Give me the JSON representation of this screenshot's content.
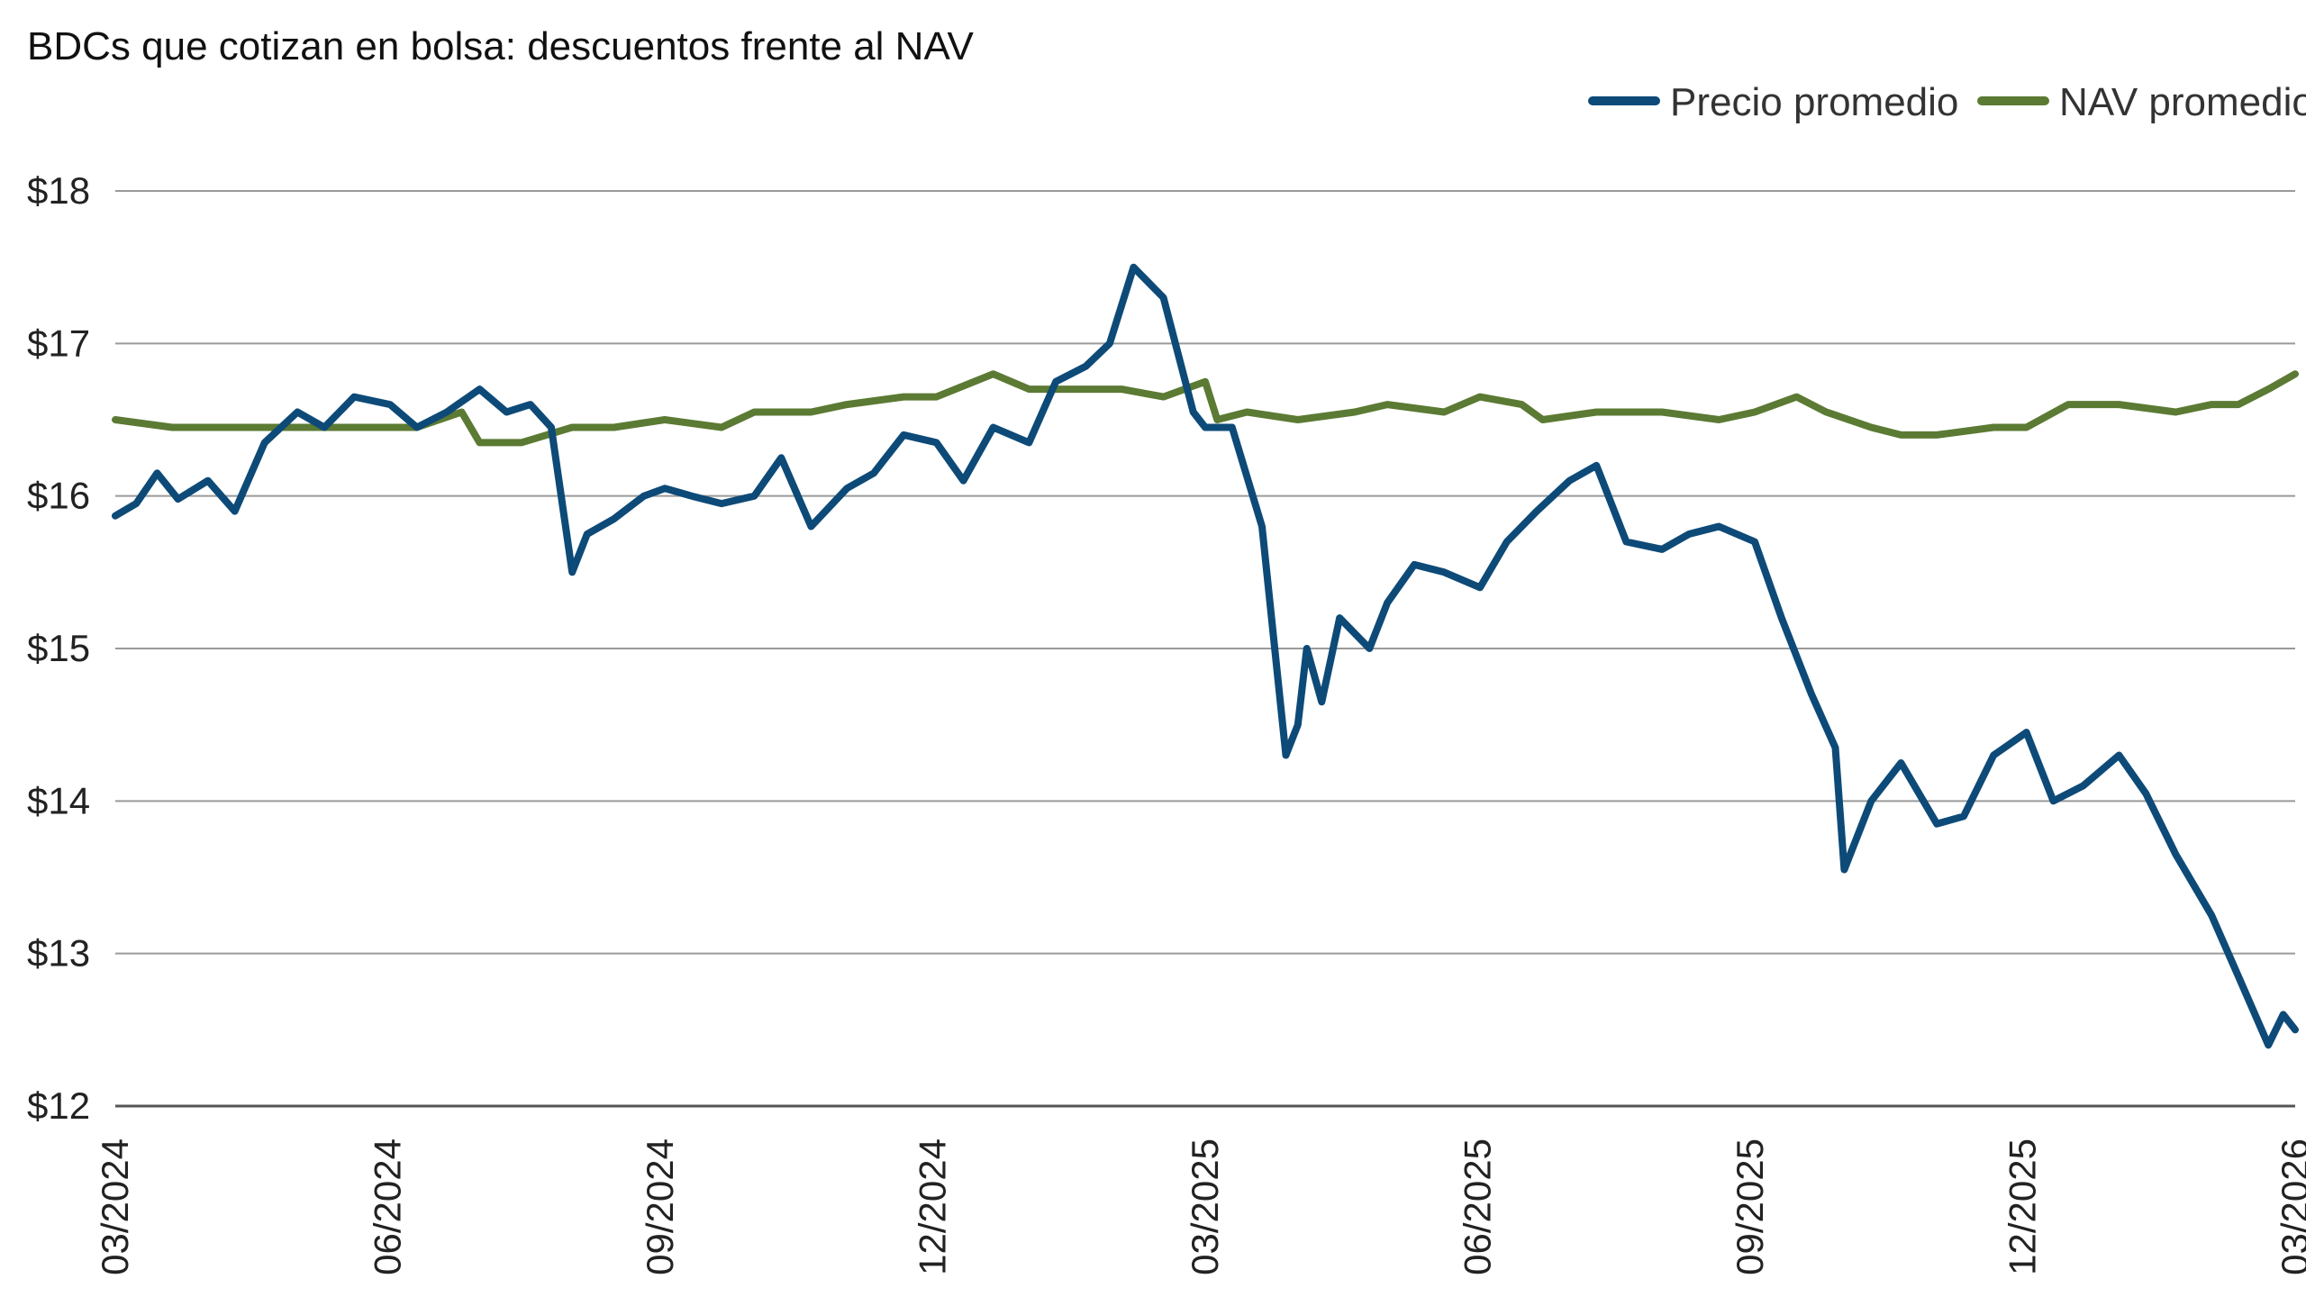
{
  "chart_data": {
    "type": "line",
    "title": "BDCs que cotizan en bolsa: descuentos frente al NAV",
    "xlabel": "",
    "ylabel": "",
    "ylim": [
      12,
      18
    ],
    "yticks": [
      "$12",
      "$13",
      "$14",
      "$15",
      "$16",
      "$17",
      "$18"
    ],
    "yticks_values": [
      12,
      13,
      14,
      15,
      16,
      17,
      18
    ],
    "xticks": [
      "03/2024",
      "06/2024",
      "09/2024",
      "12/2024",
      "03/2025",
      "06/2025",
      "09/2025",
      "12/2025",
      "03/2026"
    ],
    "xlim": [
      "2024-03-01",
      "2026-03-01"
    ],
    "grid": true,
    "legend_position": "top-right",
    "colors": {
      "price": "#0d4a78",
      "nav": "#5b7a33"
    },
    "series": [
      {
        "name": "Precio promedio",
        "x": [
          "2024-03-01",
          "2024-03-08",
          "2024-03-15",
          "2024-03-22",
          "2024-04-01",
          "2024-04-10",
          "2024-04-20",
          "2024-05-01",
          "2024-05-10",
          "2024-05-20",
          "2024-06-01",
          "2024-06-10",
          "2024-06-20",
          "2024-07-01",
          "2024-07-10",
          "2024-07-18",
          "2024-07-25",
          "2024-08-01",
          "2024-08-06",
          "2024-08-15",
          "2024-08-25",
          "2024-09-01",
          "2024-09-10",
          "2024-09-20",
          "2024-10-01",
          "2024-10-10",
          "2024-10-20",
          "2024-11-01",
          "2024-11-10",
          "2024-11-20",
          "2024-12-01",
          "2024-12-10",
          "2024-12-20",
          "2025-01-01",
          "2025-01-10",
          "2025-01-20",
          "2025-01-28",
          "2025-02-05",
          "2025-02-15",
          "2025-02-25",
          "2025-03-01",
          "2025-03-10",
          "2025-03-20",
          "2025-03-28",
          "2025-04-01",
          "2025-04-04",
          "2025-04-09",
          "2025-04-15",
          "2025-04-25",
          "2025-05-01",
          "2025-05-10",
          "2025-05-20",
          "2025-06-01",
          "2025-06-10",
          "2025-06-20",
          "2025-07-01",
          "2025-07-10",
          "2025-07-20",
          "2025-08-01",
          "2025-08-10",
          "2025-08-20",
          "2025-09-01",
          "2025-09-10",
          "2025-09-20",
          "2025-09-28",
          "2025-10-01",
          "2025-10-10",
          "2025-10-20",
          "2025-11-01",
          "2025-11-10",
          "2025-11-20",
          "2025-12-01",
          "2025-12-10",
          "2025-12-20",
          "2026-01-01",
          "2026-01-10",
          "2026-01-20",
          "2026-02-01",
          "2026-02-10",
          "2026-02-20",
          "2026-02-25",
          "2026-03-01"
        ],
        "values": [
          15.87,
          15.95,
          16.15,
          15.98,
          16.1,
          15.9,
          16.35,
          16.55,
          16.45,
          16.65,
          16.6,
          16.45,
          16.55,
          16.7,
          16.55,
          16.6,
          16.45,
          15.5,
          15.75,
          15.85,
          16.0,
          16.05,
          16.0,
          15.95,
          16.0,
          16.25,
          15.8,
          16.05,
          16.15,
          16.4,
          16.35,
          16.1,
          16.45,
          16.35,
          16.75,
          16.85,
          17.0,
          17.5,
          17.3,
          16.55,
          16.45,
          16.45,
          15.8,
          14.3,
          14.5,
          15.0,
          14.65,
          15.2,
          15.0,
          15.3,
          15.55,
          15.5,
          15.4,
          15.7,
          15.9,
          16.1,
          16.2,
          15.7,
          15.65,
          15.75,
          15.8,
          15.7,
          15.2,
          14.7,
          14.35,
          13.55,
          14.0,
          14.25,
          13.85,
          13.9,
          14.3,
          14.45,
          14.0,
          14.1,
          14.3,
          14.05,
          13.65,
          13.25,
          12.85,
          12.4,
          12.6,
          12.5
        ]
      },
      {
        "name": "NAV promedio",
        "x": [
          "2024-03-01",
          "2024-03-20",
          "2024-04-10",
          "2024-05-01",
          "2024-05-20",
          "2024-06-10",
          "2024-06-25",
          "2024-07-01",
          "2024-07-15",
          "2024-08-01",
          "2024-08-15",
          "2024-09-01",
          "2024-09-20",
          "2024-10-01",
          "2024-10-20",
          "2024-11-01",
          "2024-11-20",
          "2024-12-01",
          "2024-12-20",
          "2025-01-01",
          "2025-01-15",
          "2025-02-01",
          "2025-02-15",
          "2025-03-01",
          "2025-03-05",
          "2025-03-15",
          "2025-04-01",
          "2025-04-20",
          "2025-05-01",
          "2025-05-20",
          "2025-06-01",
          "2025-06-15",
          "2025-06-22",
          "2025-07-10",
          "2025-08-01",
          "2025-08-20",
          "2025-09-01",
          "2025-09-15",
          "2025-09-25",
          "2025-10-10",
          "2025-10-20",
          "2025-11-01",
          "2025-11-20",
          "2025-12-01",
          "2025-12-15",
          "2026-01-01",
          "2026-01-20",
          "2026-02-01",
          "2026-02-10",
          "2026-02-20",
          "2026-03-01"
        ],
        "values": [
          16.5,
          16.45,
          16.45,
          16.45,
          16.45,
          16.45,
          16.55,
          16.35,
          16.35,
          16.45,
          16.45,
          16.5,
          16.45,
          16.55,
          16.55,
          16.6,
          16.65,
          16.65,
          16.8,
          16.7,
          16.7,
          16.7,
          16.65,
          16.75,
          16.5,
          16.55,
          16.5,
          16.55,
          16.6,
          16.55,
          16.65,
          16.6,
          16.5,
          16.55,
          16.55,
          16.5,
          16.55,
          16.65,
          16.55,
          16.45,
          16.4,
          16.4,
          16.45,
          16.45,
          16.6,
          16.6,
          16.55,
          16.6,
          16.6,
          16.7,
          16.8
        ]
      }
    ]
  }
}
